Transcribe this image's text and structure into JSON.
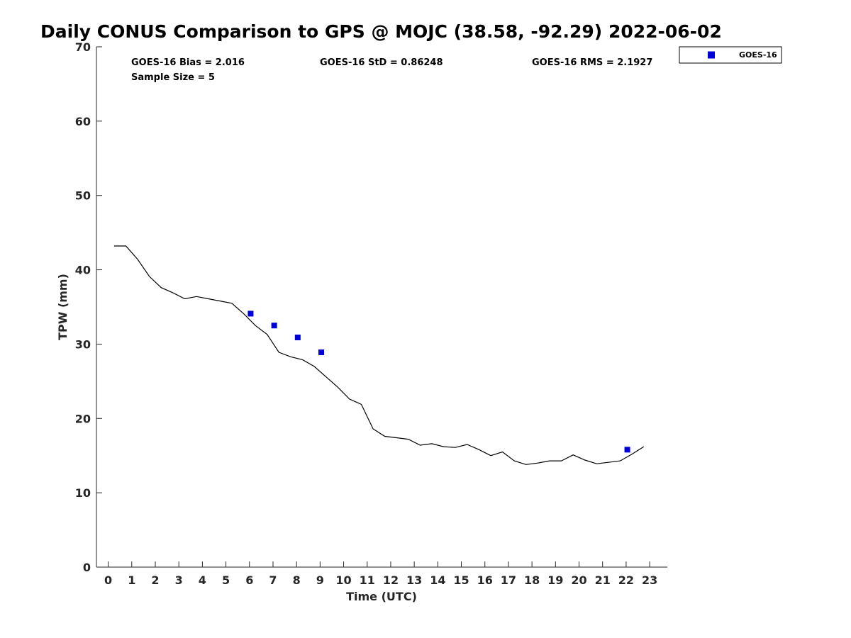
{
  "chart_data": {
    "type": "line",
    "title": "Daily CONUS Comparison to GPS @ MOJC (38.58, -92.29) 2022-06-02",
    "xlabel": "Time (UTC)",
    "ylabel": "TPW (mm)",
    "xlim": [
      -0.5,
      23.75
    ],
    "ylim": [
      0,
      70
    ],
    "xticks": [
      0,
      1,
      2,
      3,
      4,
      5,
      6,
      7,
      8,
      9,
      10,
      11,
      12,
      13,
      14,
      15,
      16,
      17,
      18,
      19,
      20,
      21,
      22,
      23
    ],
    "yticks": [
      0,
      10,
      20,
      30,
      40,
      50,
      60,
      70
    ],
    "grid": false,
    "legend_position": "outside top-right",
    "stats": [
      {
        "text": "GOES-16 Bias = 2.016"
      },
      {
        "text": "GOES-16 StD = 0.86248"
      },
      {
        "text": "GOES-16 RMS = 2.1927"
      },
      {
        "text": "Sample Size = 5"
      }
    ],
    "series": [
      {
        "style": "line",
        "color": "#000000",
        "x": [
          0.25,
          0.75,
          1.25,
          1.75,
          2.25,
          2.75,
          3.25,
          3.75,
          4.25,
          4.75,
          5.25,
          5.75,
          6.25,
          6.75,
          7.25,
          7.75,
          8.25,
          8.75,
          9.25,
          9.75,
          10.25,
          10.75,
          11.25,
          11.75,
          12.25,
          12.75,
          13.25,
          13.75,
          14.25,
          14.75,
          15.25,
          15.75,
          16.25,
          16.75,
          17.25,
          17.75,
          18.25,
          18.75,
          19.25,
          19.75,
          20.25,
          20.75,
          21.25,
          21.75,
          22.25,
          22.75
        ],
        "y": [
          43.2,
          43.2,
          41.4,
          39.1,
          37.6,
          36.9,
          36.1,
          36.4,
          36.1,
          35.8,
          35.5,
          34.1,
          32.5,
          31.3,
          28.9,
          28.3,
          27.9,
          27.0,
          25.6,
          24.2,
          22.6,
          21.9,
          18.6,
          17.6,
          17.4,
          17.2,
          16.4,
          16.6,
          16.2,
          16.1,
          16.5,
          15.8,
          15.0,
          15.5,
          14.3,
          13.8,
          14.0,
          14.3,
          14.3,
          15.1,
          14.4,
          13.9,
          14.1,
          14.3,
          15.2,
          16.2
        ]
      },
      {
        "name": "GOES-16",
        "style": "marker",
        "color": "#0000dd",
        "x": [
          6.05,
          7.05,
          8.05,
          9.05,
          22.05
        ],
        "y": [
          34.1,
          32.5,
          30.9,
          28.9,
          15.8
        ]
      }
    ]
  }
}
